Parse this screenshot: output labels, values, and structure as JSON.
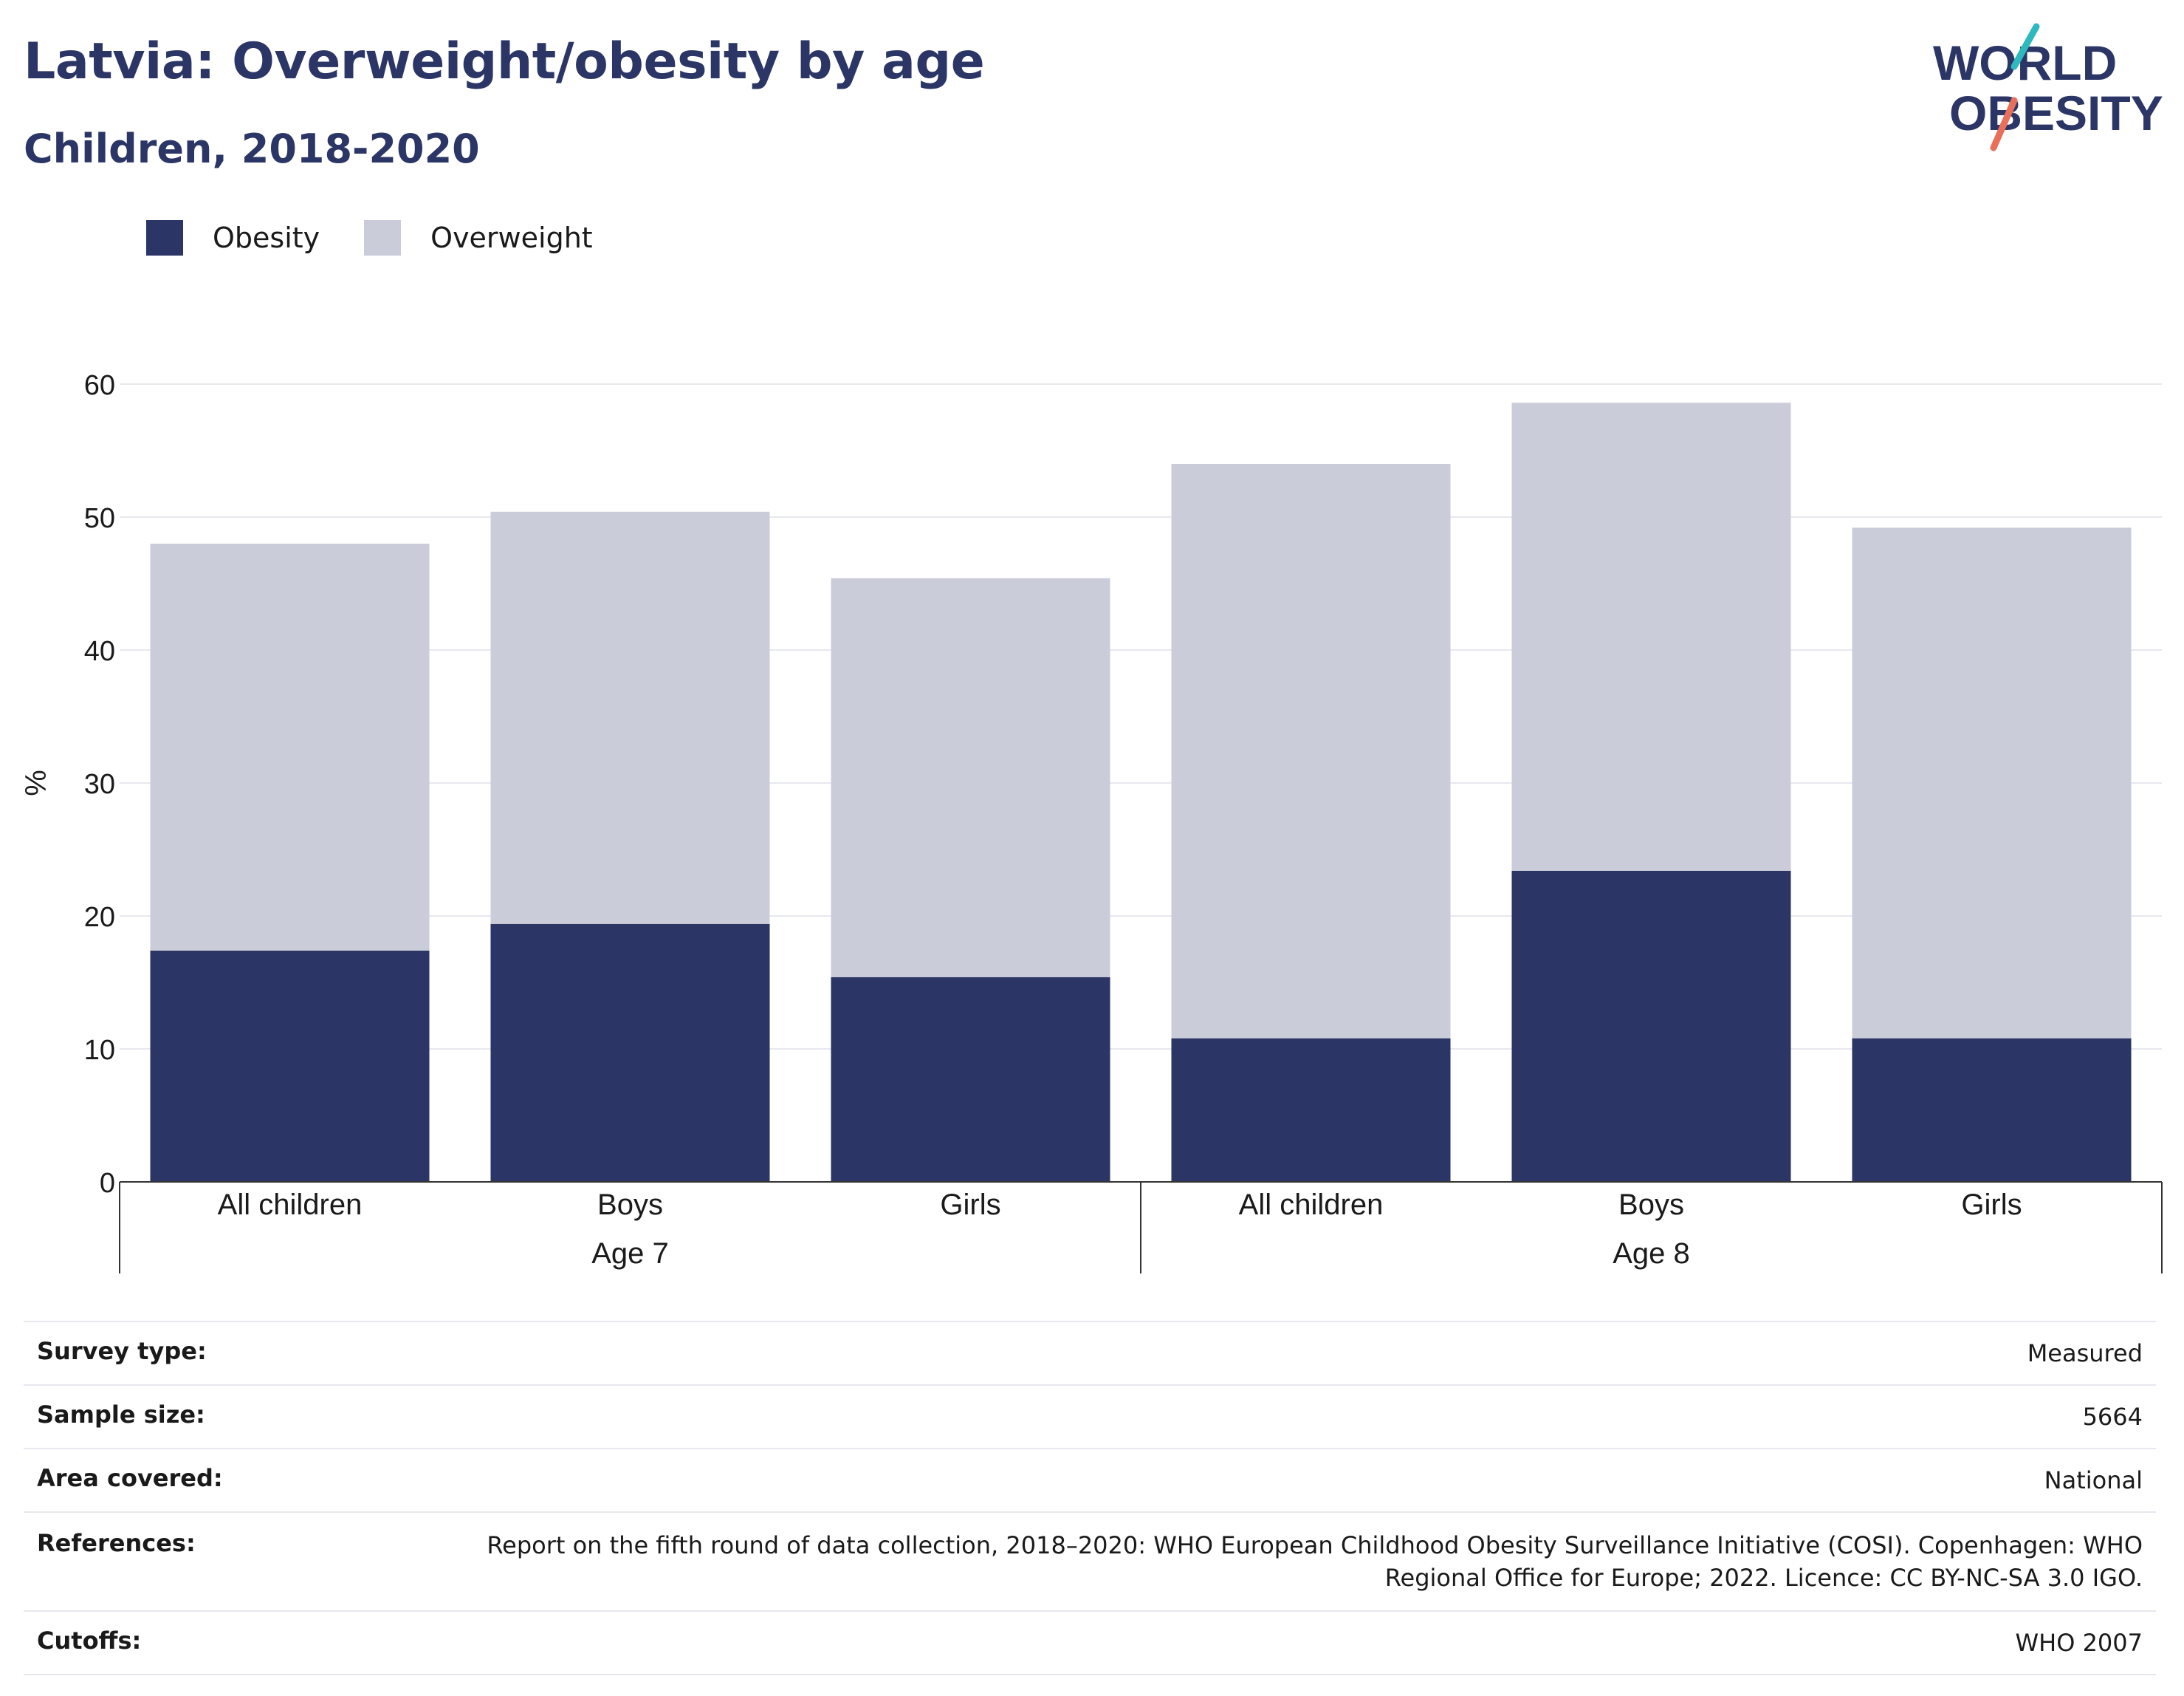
{
  "header": {
    "title": "Latvia: Overweight/obesity by age",
    "subtitle": "Children, 2018-2020"
  },
  "logo": {
    "line1": "WORLD",
    "line2": "OBESITY",
    "colors": {
      "text": "#2b3666",
      "teal": "#2fb8bd",
      "coral": "#e8705a"
    }
  },
  "colors": {
    "obesity": "#2b3666",
    "overweight": "#cbccd9",
    "grid": "#e6e8ef",
    "axis": "#333333",
    "text": "#1a1a1a",
    "heading": "#2b3666"
  },
  "chart_data": {
    "type": "bar",
    "stacked": true,
    "title": "Latvia: Overweight/obesity by age",
    "subtitle": "Children, 2018-2020",
    "ylabel": "%",
    "ylim": [
      0,
      60
    ],
    "yticks": [
      0,
      10,
      20,
      30,
      40,
      50,
      60
    ],
    "grid": true,
    "legend_position": "top-left",
    "categories": [
      "All children",
      "Boys",
      "Girls",
      "All children",
      "Boys",
      "Girls"
    ],
    "groups": [
      {
        "label": "Age 7",
        "categories": [
          "All children",
          "Boys",
          "Girls"
        ]
      },
      {
        "label": "Age 8",
        "categories": [
          "All children",
          "Boys",
          "Girls"
        ]
      }
    ],
    "series": [
      {
        "name": "Obesity",
        "values": [
          17.4,
          19.4,
          15.4,
          10.8,
          23.4,
          10.8
        ]
      },
      {
        "name": "Overweight",
        "values": [
          30.6,
          31.0,
          30.0,
          43.2,
          35.2,
          38.4
        ]
      }
    ]
  },
  "info": [
    {
      "label": "Survey type:",
      "value": "Measured"
    },
    {
      "label": "Sample size:",
      "value": "5664"
    },
    {
      "label": "Area covered:",
      "value": "National"
    },
    {
      "label": "References:",
      "value": "Report on the fifth round of data collection, 2018–2020: WHO European Childhood Obesity Surveillance Initiative (COSI). Copenhagen: WHO Regional Office for Europe; 2022. Licence: CC BY-NC-SA 3.0 IGO."
    },
    {
      "label": "Cutoffs:",
      "value": "WHO 2007"
    }
  ]
}
